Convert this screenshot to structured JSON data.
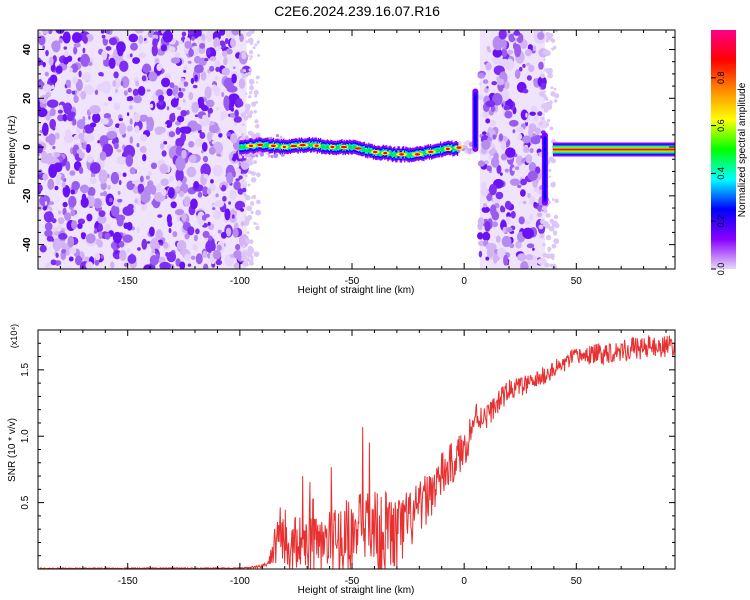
{
  "title": "C2E6.2024.239.16.07.R16",
  "chart_data": [
    {
      "type": "heatmap",
      "xlabel": "Height of straight line (km)",
      "ylabel": "Frequency (Hz)",
      "xlim": [
        -190,
        94
      ],
      "ylim": [
        -50,
        48
      ],
      "x_ticks": [
        -150,
        -100,
        -50,
        0,
        50
      ],
      "y_ticks": [
        -40,
        -20,
        0,
        20,
        40
      ],
      "noise_regions": [
        [
          -190,
          -97
        ],
        [
          7,
          36
        ]
      ],
      "signal_track": {
        "x": [
          -100,
          -90,
          -80,
          -70,
          -60,
          -50,
          -40,
          -30,
          -20,
          -10,
          0,
          5,
          35,
          40,
          60,
          80,
          94
        ],
        "y": [
          0,
          1,
          0,
          1,
          0,
          0,
          -2,
          -3,
          -3,
          -1,
          0,
          0,
          -1,
          -1,
          -1,
          -1,
          -1
        ]
      },
      "colorbar": {
        "label": "Normalized spectral amplitude",
        "range": [
          0,
          1
        ],
        "ticks": [
          "0.0",
          "0.2",
          "0.4",
          "0.6",
          "0.8"
        ],
        "colors": [
          "#e8d8f8",
          "#8800ff",
          "#0000ff",
          "#00ffff",
          "#00ff00",
          "#ffff00",
          "#ff8800",
          "#ff0000",
          "#ff0088"
        ]
      }
    },
    {
      "type": "line",
      "xlabel": "Height of straight line (km)",
      "ylabel": "SNR (10 * v/v)",
      "y_multiplier": "(x10⁴)",
      "xlim": [
        -190,
        94
      ],
      "ylim": [
        0,
        18000
      ],
      "x_ticks": [
        -150,
        -100,
        -50,
        0,
        50
      ],
      "y_ticks": [
        "0.5",
        "1.0",
        "1.5"
      ],
      "line_color": "#e83030",
      "series": [
        {
          "x": [
            -190,
            -150,
            -100,
            -90,
            -87,
            -82,
            -80,
            -75,
            -70,
            -60,
            -50,
            -40,
            -30,
            -20,
            -10,
            0,
            5,
            10,
            20,
            30,
            40,
            50,
            60,
            70,
            80,
            94
          ],
          "y": [
            40,
            50,
            60,
            200,
            500,
            3000,
            1000,
            2000,
            1500,
            2000,
            2500,
            3000,
            2500,
            4500,
            7000,
            9000,
            11500,
            11500,
            13500,
            14000,
            15000,
            16000,
            16200,
            16500,
            16700,
            16800
          ],
          "noise": [
            0,
            0,
            0,
            100,
            300,
            2500,
            2000,
            2200,
            2200,
            2500,
            3000,
            3500,
            3000,
            2000,
            1800,
            1500,
            1200,
            900,
            800,
            700,
            700,
            700,
            800,
            900,
            900,
            800
          ]
        }
      ]
    }
  ]
}
